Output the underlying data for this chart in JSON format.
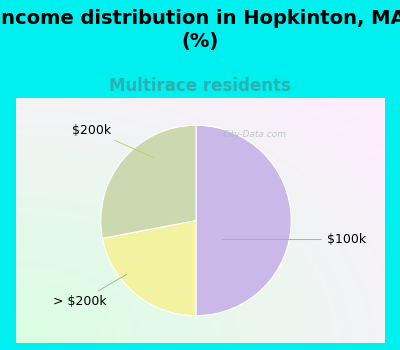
{
  "title": "Income distribution in Hopkinton, MA\n(%)",
  "subtitle": "Multirace residents",
  "slices": [
    {
      "label": "$100k",
      "value": 50,
      "color": "#c9b8e8"
    },
    {
      "label": "$200k",
      "value": 22,
      "color": "#f2f2a0"
    },
    {
      "label": "> $200k",
      "value": 28,
      "color": "#ccd8b0"
    }
  ],
  "background_color": "#00efef",
  "chart_bg_color": "#dff0e4",
  "title_fontsize": 14,
  "subtitle_fontsize": 12,
  "subtitle_color": "#2db0b0",
  "label_fontsize": 9,
  "watermark": "City-Data.com"
}
